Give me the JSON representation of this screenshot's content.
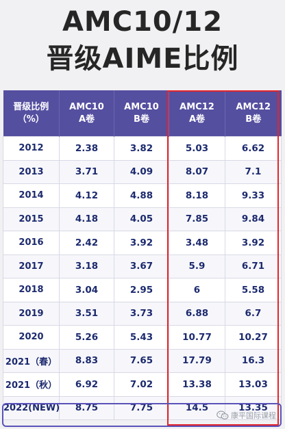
{
  "title": {
    "line1": "AMC10/12",
    "line2": "晋级AIME比例"
  },
  "table": {
    "headers": [
      {
        "l1": "晋级比例",
        "l2": "（%）"
      },
      {
        "l1": "AMC10",
        "l2": "A卷"
      },
      {
        "l1": "AMC10",
        "l2": "B卷"
      },
      {
        "l1": "AMC12",
        "l2": "A卷"
      },
      {
        "l1": "AMC12",
        "l2": "B卷"
      }
    ],
    "rows": [
      [
        "2012",
        "2.38",
        "3.82",
        "5.03",
        "6.62"
      ],
      [
        "2013",
        "3.71",
        "4.09",
        "8.07",
        "7.1"
      ],
      [
        "2014",
        "4.12",
        "4.88",
        "8.18",
        "9.33"
      ],
      [
        "2015",
        "4.18",
        "4.05",
        "7.85",
        "9.84"
      ],
      [
        "2016",
        "2.42",
        "3.92",
        "3.48",
        "3.92"
      ],
      [
        "2017",
        "3.18",
        "3.67",
        "5.9",
        "6.71"
      ],
      [
        "2018",
        "3.04",
        "2.95",
        "6",
        "5.58"
      ],
      [
        "2019",
        "3.51",
        "3.73",
        "6.88",
        "6.7"
      ],
      [
        "2020",
        "5.26",
        "5.43",
        "10.77",
        "10.27"
      ],
      [
        "2021（春）",
        "8.83",
        "7.65",
        "17.79",
        "16.3"
      ],
      [
        "2021（秋）",
        "6.92",
        "7.02",
        "13.38",
        "13.03"
      ],
      [
        "2022(NEW)",
        "8.75",
        "7.75",
        "14.5",
        "13.35"
      ]
    ]
  },
  "watermark": {
    "text": "康平国际课程",
    "icon": "wechat-icon"
  },
  "colors": {
    "header_bg": "#554fa0",
    "cell_text": "#1c2a6e",
    "highlight_red": "#e3242b",
    "highlight_purple": "#5a52b8"
  }
}
